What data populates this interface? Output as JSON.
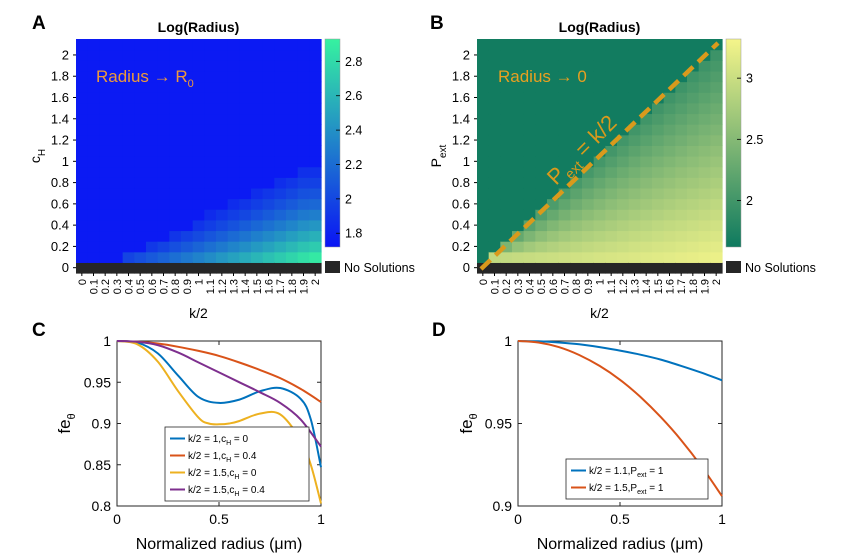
{
  "chart_data": [
    {
      "panel": "A",
      "type": "heatmap",
      "title": "Log(Radius)",
      "xlabel": "k/2",
      "ylabel": "c_H",
      "x_ticks": [
        "0",
        "0.1",
        "0.2",
        "0.3",
        "0.4",
        "0.5",
        "0.6",
        "0.7",
        "0.8",
        "0.9",
        "1",
        "1.1",
        "1.2",
        "1.3",
        "1.4",
        "1.5",
        "1.6",
        "1.7",
        "1.8",
        "1.9",
        "2"
      ],
      "y_ticks": [
        "0",
        "0.2",
        "0.4",
        "0.6",
        "0.8",
        "1",
        "1.2",
        "1.4",
        "1.6",
        "1.8",
        "2"
      ],
      "xlim": [
        0,
        2
      ],
      "ylim": [
        0,
        2
      ],
      "colorbar": {
        "min": 1.72,
        "max": 2.93,
        "ticks": [
          "1.8",
          "2",
          "2.2",
          "2.4",
          "2.6",
          "2.8"
        ],
        "colors": [
          "#0a14f5",
          "#36f2a0"
        ]
      },
      "no_solutions_label": "No Solutions",
      "no_solution_color": "#262626",
      "region_value": 1.75,
      "annotation": {
        "text": "Radius → R",
        "subscript": "0",
        "color": "#ee9a3a"
      },
      "boundary": "c_H threshold ≈ 0.1 at k/2 = 0.3 rising to ≈ 1.0 at k/2 = 2"
    },
    {
      "panel": "B",
      "type": "heatmap",
      "title": "Log(Radius)",
      "xlabel": "k/2",
      "ylabel": "P_ext",
      "x_ticks": [
        "0",
        "0.1",
        "0.2",
        "0.3",
        "0.4",
        "0.5",
        "0.6",
        "0.7",
        "0.8",
        "0.9",
        "1",
        "1.1",
        "1.2",
        "1.3",
        "1.4",
        "1.5",
        "1.6",
        "1.7",
        "1.8",
        "1.9",
        "2"
      ],
      "y_ticks": [
        "0",
        "0.2",
        "0.4",
        "0.6",
        "0.8",
        "1",
        "1.2",
        "1.4",
        "1.6",
        "1.8",
        "2"
      ],
      "xlim": [
        0,
        2
      ],
      "ylim": [
        0,
        2
      ],
      "colorbar": {
        "min": 1.62,
        "max": 3.32,
        "ticks": [
          "2",
          "2.5",
          "3"
        ],
        "colors": [
          "#0e7a5f",
          "#f5f58a"
        ]
      },
      "no_solutions_label": "No Solutions",
      "no_solution_color": "#262626",
      "region_value": 1.65,
      "annotation": {
        "text": "Radius → 0",
        "color": "#e8a020"
      },
      "line_label": {
        "main": "P",
        "sub": "ext",
        "rest": " = k/2"
      },
      "line_color": "#d99a1c"
    },
    {
      "panel": "C",
      "type": "line",
      "xlabel": "Normalized radius (μm)",
      "ylabel": "fe_θ",
      "xlim": [
        0,
        1
      ],
      "ylim": [
        0.8,
        1
      ],
      "x_ticks": [
        0,
        0.5,
        1
      ],
      "x_tick_labels": [
        "0",
        "0.5",
        "1"
      ],
      "y_ticks": [
        0.8,
        0.85,
        0.9,
        0.95,
        1
      ],
      "y_tick_labels": [
        "0.8",
        "0.85",
        "0.9",
        "0.95",
        "1"
      ],
      "series": [
        {
          "name": "k/2 = 1,c_H = 0",
          "color": "#0072bd",
          "x": [
            0,
            0.1,
            0.2,
            0.3,
            0.4,
            0.5,
            0.6,
            0.7,
            0.8,
            0.9,
            0.95,
            1
          ],
          "y": [
            1,
            0.998,
            0.985,
            0.958,
            0.932,
            0.925,
            0.929,
            0.939,
            0.943,
            0.93,
            0.905,
            0.847
          ]
        },
        {
          "name": "k/2 = 1,c_H = 0.4",
          "color": "#d95319",
          "x": [
            0,
            0.1,
            0.2,
            0.3,
            0.4,
            0.5,
            0.6,
            0.7,
            0.8,
            0.9,
            1
          ],
          "y": [
            1,
            0.999,
            0.997,
            0.993,
            0.988,
            0.982,
            0.974,
            0.965,
            0.955,
            0.942,
            0.926
          ]
        },
        {
          "name": "k/2 = 1.5,c_H = 0",
          "color": "#edb120",
          "x": [
            0,
            0.1,
            0.2,
            0.3,
            0.4,
            0.45,
            0.5,
            0.55,
            0.6,
            0.7,
            0.8,
            0.9,
            0.95,
            1
          ],
          "y": [
            1,
            0.996,
            0.975,
            0.939,
            0.907,
            0.9,
            0.899,
            0.9,
            0.903,
            0.912,
            0.911,
            0.88,
            0.85,
            0.803
          ]
        },
        {
          "name": "k/2 = 1.5,c_H = 0.4",
          "color": "#7e2f8e",
          "x": [
            0,
            0.1,
            0.2,
            0.3,
            0.4,
            0.5,
            0.6,
            0.7,
            0.8,
            0.9,
            1
          ],
          "y": [
            1,
            0.999,
            0.995,
            0.986,
            0.974,
            0.962,
            0.95,
            0.938,
            0.925,
            0.905,
            0.872
          ]
        }
      ]
    },
    {
      "panel": "D",
      "type": "line",
      "xlabel": "Normalized radius (μm)",
      "ylabel": "fe_θ",
      "xlim": [
        0,
        1
      ],
      "ylim": [
        0.9,
        1
      ],
      "x_ticks": [
        0,
        0.5,
        1
      ],
      "x_tick_labels": [
        "0",
        "0.5",
        "1"
      ],
      "y_ticks": [
        0.9,
        0.95,
        1
      ],
      "y_tick_labels": [
        "0.9",
        "0.95",
        "1"
      ],
      "series": [
        {
          "name": "k/2 = 1.1,P_ext = 1",
          "color": "#0072bd",
          "x": [
            0,
            0.1,
            0.2,
            0.3,
            0.4,
            0.5,
            0.6,
            0.7,
            0.8,
            0.9,
            1
          ],
          "y": [
            1,
            0.9998,
            0.9991,
            0.998,
            0.9963,
            0.9942,
            0.9917,
            0.9887,
            0.9849,
            0.9808,
            0.9762
          ]
        },
        {
          "name": "k/2 = 1.5,P_ext = 1",
          "color": "#d95319",
          "x": [
            0,
            0.1,
            0.2,
            0.3,
            0.4,
            0.5,
            0.6,
            0.7,
            0.8,
            0.9,
            1
          ],
          "y": [
            1,
            0.9991,
            0.9963,
            0.9915,
            0.9849,
            0.9765,
            0.9661,
            0.9539,
            0.9399,
            0.9239,
            0.906
          ]
        }
      ]
    }
  ]
}
